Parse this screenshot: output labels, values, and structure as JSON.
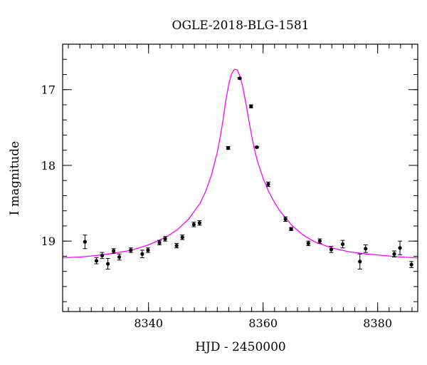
{
  "chart_data": {
    "type": "scatter",
    "title": "OGLE-2018-BLG-1581",
    "xlabel": "HJD - 2450000",
    "ylabel": "I magnitude",
    "xlim": [
      8325,
      8387
    ],
    "ylim": [
      19.93,
      16.4
    ],
    "y_inverted": true,
    "x_ticks": [
      8340,
      8360,
      8380
    ],
    "x_minor_step": 2,
    "y_ticks": [
      17,
      18,
      19
    ],
    "y_minor_step": 0.2,
    "grid": false,
    "colors": {
      "points": "#000000",
      "model": "#ff00ff",
      "axes": "#000000"
    },
    "points": [
      {
        "x": 8328.9,
        "y": 19.01,
        "err": 0.09
      },
      {
        "x": 8330.9,
        "y": 19.26,
        "err": 0.04
      },
      {
        "x": 8331.9,
        "y": 19.19,
        "err": 0.04
      },
      {
        "x": 8332.9,
        "y": 19.3,
        "err": 0.07
      },
      {
        "x": 8333.9,
        "y": 19.13,
        "err": 0.03
      },
      {
        "x": 8334.9,
        "y": 19.21,
        "err": 0.04
      },
      {
        "x": 8336.9,
        "y": 19.12,
        "err": 0.03
      },
      {
        "x": 8338.9,
        "y": 19.17,
        "err": 0.05
      },
      {
        "x": 8339.9,
        "y": 19.12,
        "err": 0.03
      },
      {
        "x": 8341.9,
        "y": 19.02,
        "err": 0.03
      },
      {
        "x": 8342.9,
        "y": 18.97,
        "err": 0.03
      },
      {
        "x": 8344.9,
        "y": 19.06,
        "err": 0.03
      },
      {
        "x": 8345.9,
        "y": 18.95,
        "err": 0.03
      },
      {
        "x": 8347.9,
        "y": 18.78,
        "err": 0.03
      },
      {
        "x": 8348.9,
        "y": 18.76,
        "err": 0.03
      },
      {
        "x": 8353.9,
        "y": 17.77,
        "err": 0.02
      },
      {
        "x": 8355.9,
        "y": 16.85,
        "err": 0.01
      },
      {
        "x": 8357.9,
        "y": 17.22,
        "err": 0.02
      },
      {
        "x": 8358.9,
        "y": 17.76,
        "err": 0.01
      },
      {
        "x": 8360.9,
        "y": 18.25,
        "err": 0.03
      },
      {
        "x": 8363.9,
        "y": 18.71,
        "err": 0.03
      },
      {
        "x": 8364.9,
        "y": 18.84,
        "err": 0.02
      },
      {
        "x": 8367.9,
        "y": 19.03,
        "err": 0.03
      },
      {
        "x": 8369.9,
        "y": 19.0,
        "err": 0.03
      },
      {
        "x": 8371.9,
        "y": 19.11,
        "err": 0.04
      },
      {
        "x": 8373.9,
        "y": 19.04,
        "err": 0.05
      },
      {
        "x": 8376.9,
        "y": 19.27,
        "err": 0.1
      },
      {
        "x": 8377.9,
        "y": 19.1,
        "err": 0.05
      },
      {
        "x": 8382.9,
        "y": 19.17,
        "err": 0.04
      },
      {
        "x": 8383.9,
        "y": 19.09,
        "err": 0.09
      },
      {
        "x": 8385.9,
        "y": 19.31,
        "err": 0.04
      }
    ],
    "model": {
      "x": [
        8325,
        8328,
        8331,
        8334,
        8337,
        8340,
        8343,
        8345,
        8347,
        8349,
        8350,
        8351,
        8352,
        8352.5,
        8353,
        8353.5,
        8354,
        8354.5,
        8355,
        8355.5,
        8356,
        8356.5,
        8357,
        8357.5,
        8358,
        8358.5,
        8359,
        8360,
        8361,
        8362,
        8363,
        8365,
        8367,
        8369,
        8372,
        8375,
        8378,
        8381,
        8384,
        8387
      ],
      "y": [
        19.22,
        19.21,
        19.19,
        19.16,
        19.12,
        19.05,
        18.95,
        18.85,
        18.71,
        18.5,
        18.34,
        18.12,
        17.83,
        17.63,
        17.4,
        17.14,
        16.93,
        16.79,
        16.73,
        16.74,
        16.83,
        16.98,
        17.18,
        17.4,
        17.61,
        17.79,
        17.94,
        18.17,
        18.35,
        18.49,
        18.61,
        18.79,
        18.92,
        19.01,
        19.09,
        19.14,
        19.17,
        19.19,
        19.21,
        19.22
      ]
    }
  }
}
